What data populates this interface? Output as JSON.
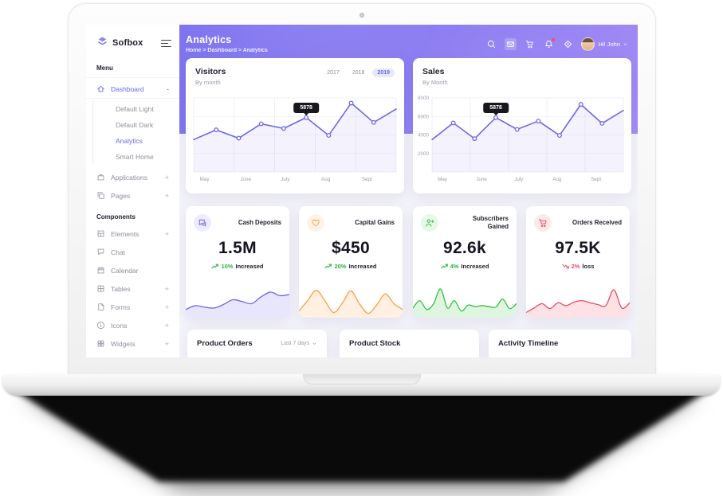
{
  "sidebar": {
    "logo_text": "Sofbox",
    "sections": [
      {
        "label": "Menu",
        "items": [
          {
            "label": "Dashboard",
            "icon": "home-icon",
            "suffix": "-",
            "active": true,
            "children": [
              {
                "label": "Default Light",
                "active": false
              },
              {
                "label": "Default Dark",
                "active": false
              },
              {
                "label": "Analytics",
                "active": true
              },
              {
                "label": "Smart Home",
                "active": false
              }
            ]
          },
          {
            "label": "Applications",
            "icon": "briefcase-icon",
            "suffix": "+"
          },
          {
            "label": "Pages",
            "icon": "copy-icon",
            "suffix": "+"
          }
        ]
      },
      {
        "label": "Components",
        "items": [
          {
            "label": "Elements",
            "icon": "box-icon",
            "suffix": "+"
          },
          {
            "label": "Chat",
            "icon": "chat-icon"
          },
          {
            "label": "Calendar",
            "icon": "calendar-icon"
          },
          {
            "label": "Tables",
            "icon": "table-icon",
            "suffix": "+"
          },
          {
            "label": "Forms",
            "icon": "file-icon",
            "suffix": "+"
          },
          {
            "label": "Icons",
            "icon": "info-circle-icon",
            "suffix": "+"
          },
          {
            "label": "Widgets",
            "icon": "grid-icon",
            "suffix": "+"
          }
        ]
      }
    ]
  },
  "header": {
    "title": "Analytics",
    "breadcrumb": "Home > Dashboard > Analytics",
    "user": "Hi! John",
    "icons": [
      {
        "name": "search-icon"
      },
      {
        "name": "mail-icon",
        "boxed": true
      },
      {
        "name": "cart-icon"
      },
      {
        "name": "bell-icon",
        "badge": true
      },
      {
        "name": "scan-icon"
      }
    ]
  },
  "stat_cards": [
    {
      "title": "Cash Deposits",
      "icon": "message-icon",
      "accent": "#6c63f0",
      "value": "1.5M",
      "change_pct": "10%",
      "change_word": "Increased",
      "direction": "up",
      "trend_color": "#27b345"
    },
    {
      "title": "Capital Gains",
      "icon": "heart-icon",
      "accent": "#ff9f43",
      "value": "$450",
      "change_pct": "20%",
      "change_word": "Increased",
      "direction": "up",
      "trend_color": "#27b345"
    },
    {
      "title": "Subscribers Gained",
      "icon": "user-plus-icon",
      "accent": "#33c23d",
      "value": "92.6k",
      "change_pct": "4%",
      "change_word": "Increased",
      "direction": "up",
      "trend_color": "#27b345"
    },
    {
      "title": "Orders Received",
      "icon": "cart-icon",
      "accent": "#ea4c62",
      "value": "97.5K",
      "change_pct": "2%",
      "change_word": "loss",
      "direction": "down",
      "trend_color": "#ea4c62"
    }
  ],
  "bottom_cards": [
    {
      "title": "Product Orders",
      "filter": "Last 7 days"
    },
    {
      "title": "Product Stock"
    },
    {
      "title": "Activity Timeline"
    }
  ],
  "chart_data": [
    {
      "id": "visitors",
      "type": "line",
      "title": "Visitors",
      "subtitle": "By month",
      "categories": [
        "May",
        "June",
        "July",
        "Aug",
        "Sept"
      ],
      "values": [
        3500,
        4550,
        3650,
        5200,
        4700,
        5878,
        3950,
        7450,
        5350,
        6800
      ],
      "tooltip": {
        "index": 5,
        "label": "5878"
      },
      "ylim": [
        0,
        8000
      ],
      "yticks": [],
      "year_tabs": [
        "2017",
        "2018",
        "2019"
      ],
      "active_year": "2019",
      "color": "#6d68e8",
      "grid": true,
      "legend": "none"
    },
    {
      "id": "sales",
      "type": "line",
      "title": "Sales",
      "subtitle": "By Month",
      "categories": [
        "May",
        "June",
        "July",
        "Aug",
        "Sept"
      ],
      "values": [
        3500,
        5300,
        3600,
        5878,
        4600,
        5500,
        3950,
        7300,
        5250,
        6650
      ],
      "tooltip": {
        "index": 3,
        "label": "5878"
      },
      "ylim": [
        0,
        8000
      ],
      "yticks": [
        2000,
        4000,
        6000,
        8000
      ],
      "color": "#6d68e8",
      "grid": true,
      "legend": "none"
    },
    {
      "id": "spark-cash-deposits",
      "type": "area",
      "color": "#6c63f0",
      "values": [
        25,
        38,
        33,
        30,
        42,
        58,
        52,
        45,
        68,
        84,
        72,
        76
      ]
    },
    {
      "id": "spark-capital-gains",
      "type": "area",
      "color": "#ff9f43",
      "values": [
        20,
        55,
        90,
        55,
        15,
        45,
        88,
        45,
        12,
        40,
        78,
        45,
        25
      ]
    },
    {
      "id": "spark-subscribers",
      "type": "area",
      "color": "#33c23d",
      "values": [
        30,
        55,
        25,
        45,
        95,
        30,
        55,
        20,
        40,
        35,
        38,
        35,
        33,
        60,
        28,
        45
      ]
    },
    {
      "id": "spark-orders",
      "type": "area",
      "color": "#ea4c62",
      "values": [
        15,
        30,
        45,
        28,
        48,
        38,
        50,
        55,
        48,
        42,
        38,
        92,
        30,
        48
      ]
    }
  ]
}
